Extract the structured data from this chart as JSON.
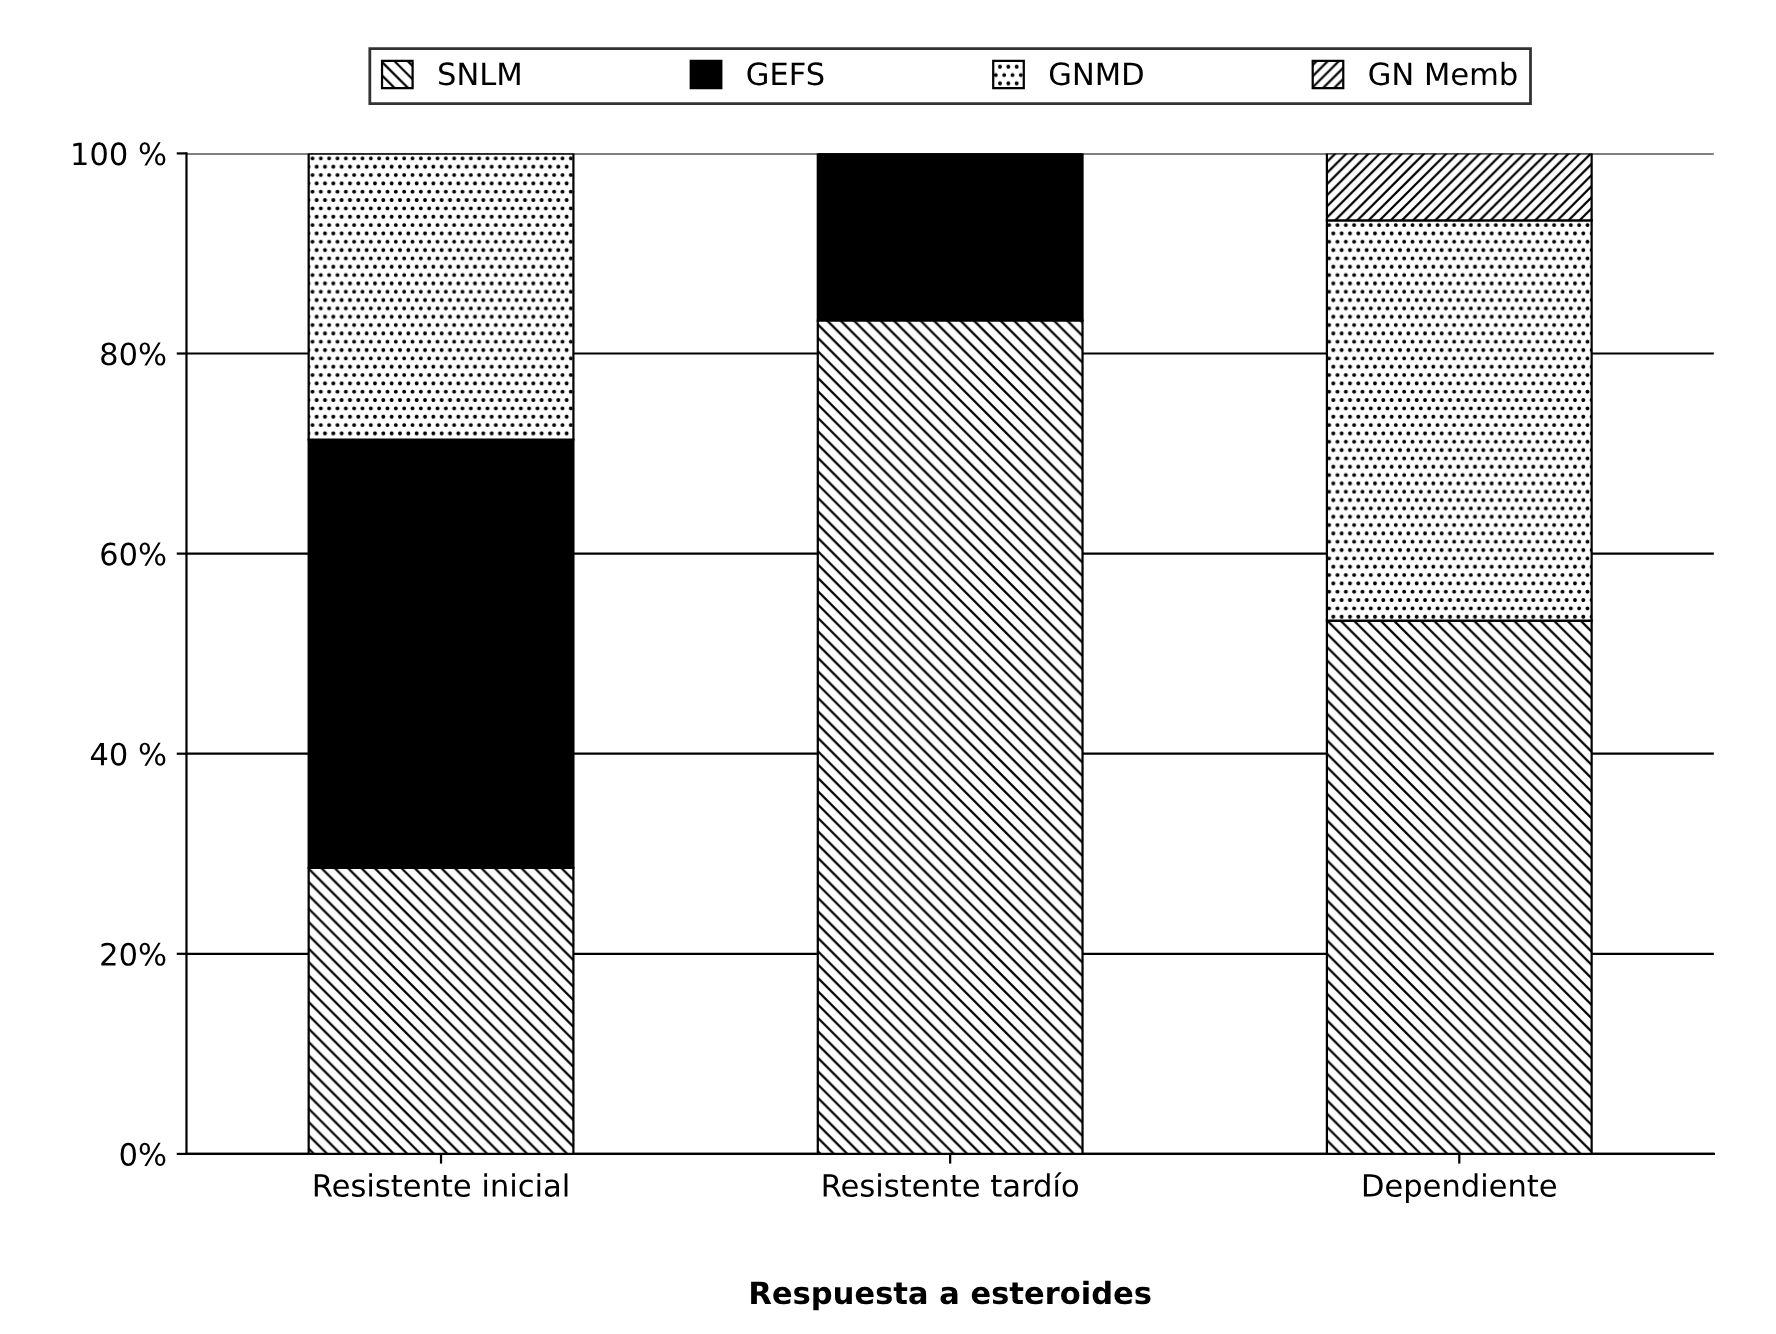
{
  "chart_data": {
    "type": "bar",
    "stacked": true,
    "xlabel": "Respuesta a esteroides",
    "categories": [
      "Resistente inicial",
      "Resistente tardío",
      "Dependiente"
    ],
    "series": [
      {
        "name": "SNLM",
        "color": "#000000",
        "values": [
          28.6,
          83.3,
          53.3
        ]
      },
      {
        "name": "GEFS",
        "color": "#000000",
        "values": [
          42.8,
          16.7,
          0
        ]
      },
      {
        "name": "GNMD",
        "color": "#000000",
        "values": [
          28.6,
          0,
          40.0
        ]
      },
      {
        "name": "GN Memb",
        "color": "#000000",
        "values": [
          0,
          0,
          6.7
        ]
      }
    ],
    "ylim": [
      0,
      100
    ],
    "yticks": [
      {
        "value": 0,
        "label": "0%"
      },
      {
        "value": 20,
        "label": "20%"
      },
      {
        "value": 40,
        "label": "40 %"
      },
      {
        "value": 60,
        "label": "60%"
      },
      {
        "value": 80,
        "label": "80%"
      },
      {
        "value": 100,
        "label": "100 %"
      }
    ],
    "grid": "y",
    "legend": "top"
  }
}
